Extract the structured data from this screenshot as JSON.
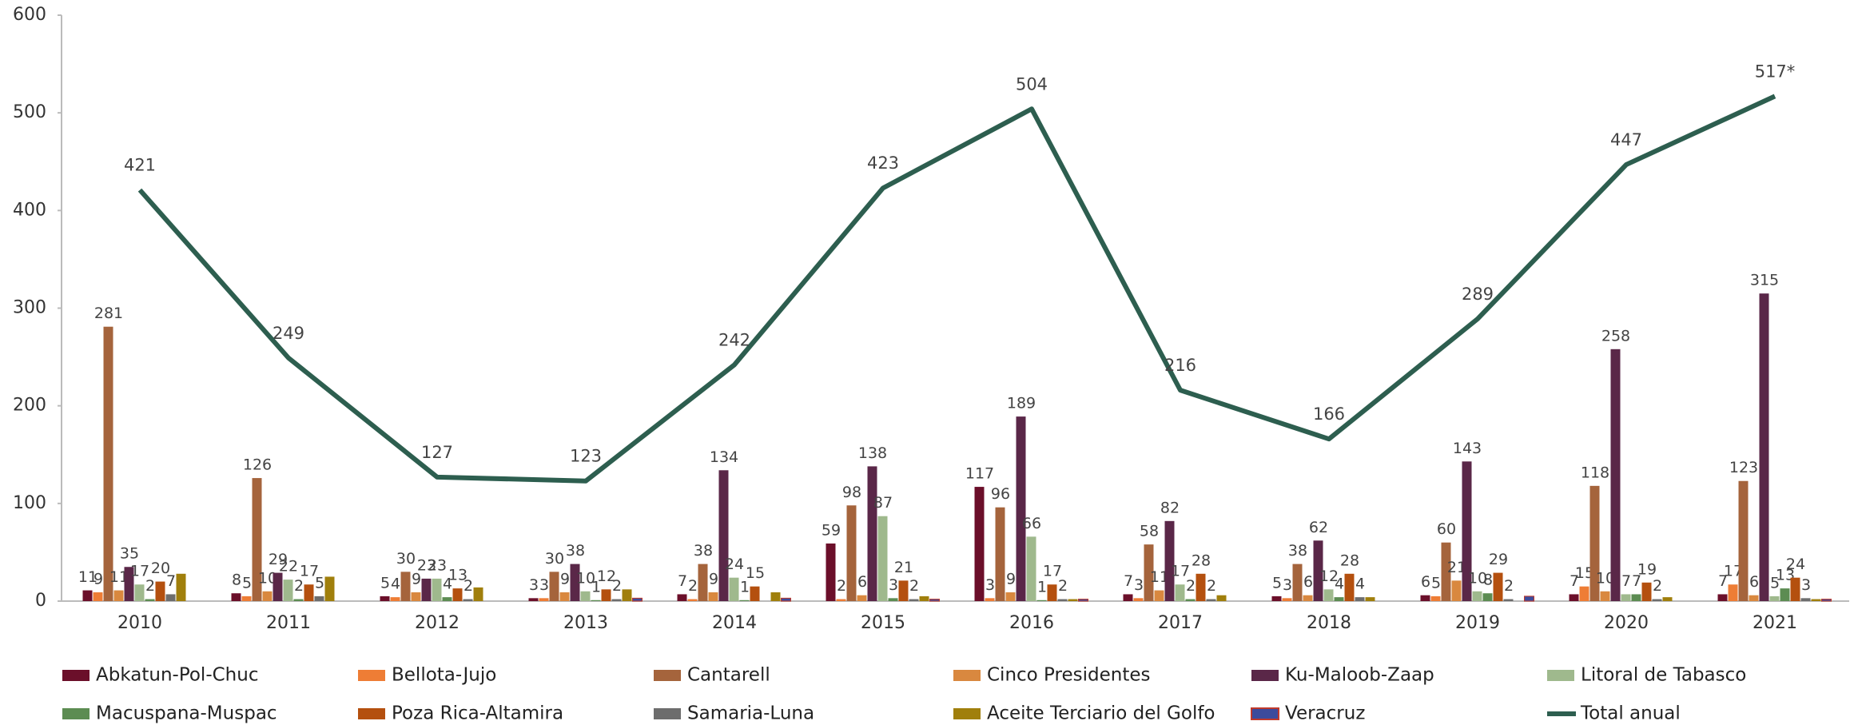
{
  "chart_data": {
    "type": "bar",
    "categories": [
      "2010",
      "2011",
      "2012",
      "2013",
      "2014",
      "2015",
      "2016",
      "2017",
      "2018",
      "2019",
      "2020",
      "2021"
    ],
    "ylim": [
      0,
      600
    ],
    "yticks": [
      0,
      100,
      200,
      300,
      400,
      500,
      600
    ],
    "grid": false,
    "series": [
      {
        "name": "Abkatun-Pol-Chuc",
        "color": "#6b0f2a",
        "values": [
          11,
          8,
          5,
          3,
          7,
          59,
          117,
          7,
          5,
          6,
          7,
          7
        ]
      },
      {
        "name": "Bellota-Jujo",
        "color": "#ee7d35",
        "values": [
          9,
          5,
          4,
          3,
          2,
          2,
          3,
          3,
          3,
          5,
          15,
          17
        ]
      },
      {
        "name": "Cantarell",
        "color": "#a5643c",
        "values": [
          281,
          126,
          30,
          30,
          38,
          98,
          96,
          58,
          38,
          60,
          118,
          123
        ]
      },
      {
        "name": "Cinco Presidentes",
        "color": "#d9883f",
        "values": [
          11,
          10,
          9,
          9,
          9,
          6,
          9,
          11,
          6,
          21,
          10,
          6
        ]
      },
      {
        "name": "Ku-Maloob-Zaap",
        "color": "#5a2748",
        "values": [
          35,
          29,
          23,
          38,
          134,
          138,
          189,
          82,
          62,
          143,
          258,
          315
        ]
      },
      {
        "name": "Litoral de Tabasco",
        "color": "#9fb98d",
        "values": [
          17,
          22,
          23,
          10,
          24,
          87,
          66,
          17,
          12,
          10,
          7,
          5
        ]
      },
      {
        "name": "Macuspana-Muspac",
        "color": "#5c8c52",
        "values": [
          2,
          2,
          4,
          1,
          1,
          3,
          1,
          2,
          4,
          8,
          7,
          13
        ]
      },
      {
        "name": "Poza Rica-Altamira",
        "color": "#b4500f",
        "values": [
          20,
          17,
          13,
          12,
          15,
          21,
          17,
          28,
          28,
          29,
          19,
          24
        ]
      },
      {
        "name": "Samaria-Luna",
        "color": "#6d6d6d",
        "values": [
          7,
          5,
          2,
          2,
          0,
          2,
          2,
          2,
          4,
          2,
          2,
          3
        ]
      },
      {
        "name": "Aceite Terciario del Golfo",
        "color": "#a07f0c",
        "values": [
          28,
          25,
          14,
          12,
          9,
          5,
          2,
          6,
          4,
          0,
          4,
          2
        ]
      },
      {
        "name": "Veracruz",
        "color": "#3c4b9c",
        "values": [
          0,
          0,
          0,
          3,
          3,
          2,
          2,
          0,
          0,
          5,
          0,
          2
        ]
      },
      {
        "name": "Total anual",
        "color": "#2d5e4f",
        "type": "line",
        "values": [
          421,
          249,
          127,
          123,
          242,
          423,
          504,
          216,
          166,
          289,
          447,
          517
        ],
        "value_labels": [
          "421",
          "249",
          "127",
          "123",
          "242",
          "423",
          "504",
          "216",
          "166",
          "289",
          "447",
          "517*"
        ]
      }
    ]
  }
}
